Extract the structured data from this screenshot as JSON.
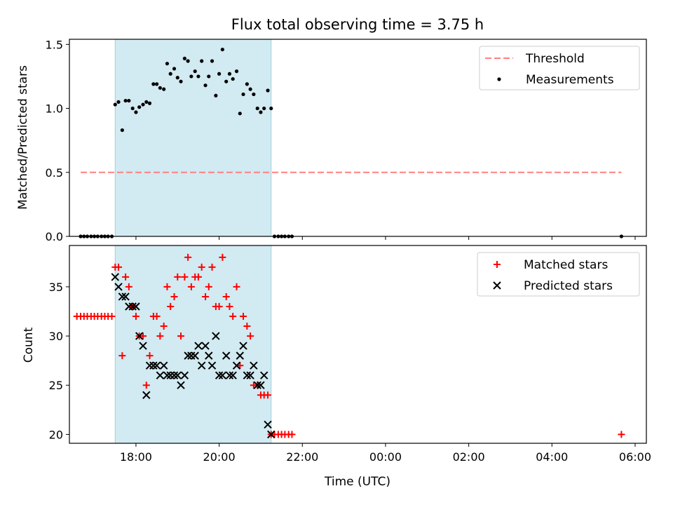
{
  "chart_data": [
    {
      "type": "scatter",
      "title": "Flux total observing time = 3.75 h",
      "xlabel": "",
      "ylabel": "Matched/Predicted stars",
      "xlim": [
        16.4,
        30.27
      ],
      "ylim": [
        0,
        1.54
      ],
      "yticks": [
        0.0,
        0.5,
        1.0,
        1.5
      ],
      "ytick_labels": [
        "0.0",
        "0.5",
        "1.0",
        "1.5"
      ],
      "xticks": [
        18,
        20,
        22,
        24,
        26,
        28,
        30
      ],
      "shaded_interval": [
        17.5,
        21.25
      ],
      "shaded_color": "#add8e6",
      "legend_position": "upper right",
      "series": [
        {
          "name": "Threshold",
          "kind": "line",
          "style": "dashed",
          "color": "#ff8080",
          "x": [
            16.67,
            29.67
          ],
          "y": [
            0.5,
            0.5
          ]
        },
        {
          "name": "Measurements",
          "kind": "scatter",
          "marker": "dot",
          "color": "#000000",
          "x": [
            16.67,
            16.75,
            16.83,
            16.92,
            17.0,
            17.08,
            17.17,
            17.25,
            17.33,
            17.42,
            17.5,
            17.58,
            17.67,
            17.75,
            17.83,
            17.92,
            18.0,
            18.08,
            18.17,
            18.25,
            18.33,
            18.42,
            18.5,
            18.58,
            18.67,
            18.75,
            18.83,
            18.92,
            19.0,
            19.08,
            19.17,
            19.25,
            19.33,
            19.42,
            19.5,
            19.58,
            19.67,
            19.75,
            19.83,
            19.92,
            20.0,
            20.08,
            20.17,
            20.25,
            20.33,
            20.42,
            20.5,
            20.58,
            20.67,
            20.75,
            20.83,
            20.92,
            21.0,
            21.08,
            21.17,
            21.25,
            21.33,
            21.42,
            21.5,
            21.58,
            21.67,
            21.75,
            29.67
          ],
          "y": [
            0,
            0,
            0,
            0,
            0,
            0,
            0,
            0,
            0,
            0,
            1.03,
            1.05,
            0.83,
            1.06,
            1.06,
            1.0,
            0.97,
            1.01,
            1.03,
            1.05,
            1.04,
            1.19,
            1.19,
            1.16,
            1.15,
            1.35,
            1.27,
            1.31,
            1.24,
            1.21,
            1.39,
            1.37,
            1.25,
            1.29,
            1.25,
            1.37,
            1.18,
            1.25,
            1.37,
            1.1,
            1.27,
            1.46,
            1.21,
            1.27,
            1.23,
            1.29,
            0.96,
            1.11,
            1.19,
            1.15,
            1.11,
            1.0,
            0.97,
            1.0,
            1.14,
            1.0,
            0,
            0,
            0,
            0,
            0,
            0,
            0
          ]
        }
      ]
    },
    {
      "type": "scatter",
      "title": "",
      "xlabel": "Time (UTC)",
      "ylabel": "Count",
      "xlim": [
        16.4,
        30.27
      ],
      "ylim": [
        19.1,
        39.2
      ],
      "yticks": [
        20,
        25,
        30,
        35
      ],
      "ytick_labels": [
        "20",
        "25",
        "30",
        "35"
      ],
      "xticks": [
        18,
        20,
        22,
        24,
        26,
        28,
        30
      ],
      "xtick_labels": [
        "18:00",
        "20:00",
        "22:00",
        "00:00",
        "02:00",
        "04:00",
        "06:00"
      ],
      "shaded_interval": [
        17.5,
        21.25
      ],
      "shaded_color": "#add8e6",
      "legend_position": "upper right",
      "series": [
        {
          "name": "Matched stars",
          "kind": "scatter",
          "marker": "plus",
          "color": "#ff0000",
          "x": [
            16.58,
            16.67,
            16.75,
            16.83,
            16.92,
            17.0,
            17.08,
            17.17,
            17.25,
            17.33,
            17.42,
            17.5,
            17.58,
            17.67,
            17.75,
            17.83,
            17.92,
            18.0,
            18.08,
            18.17,
            18.25,
            18.33,
            18.42,
            18.5,
            18.58,
            18.67,
            18.75,
            18.83,
            18.92,
            19.0,
            19.08,
            19.17,
            19.25,
            19.33,
            19.42,
            19.5,
            19.58,
            19.67,
            19.75,
            19.83,
            19.92,
            20.0,
            20.08,
            20.17,
            20.25,
            20.33,
            20.42,
            20.5,
            20.58,
            20.67,
            20.75,
            20.83,
            20.92,
            21.0,
            21.08,
            21.17,
            21.25,
            21.33,
            21.42,
            21.5,
            21.58,
            21.67,
            21.75,
            29.67
          ],
          "y": [
            32,
            32,
            32,
            32,
            32,
            32,
            32,
            32,
            32,
            32,
            32,
            37,
            37,
            28,
            36,
            35,
            33,
            32,
            30,
            30,
            25,
            28,
            32,
            32,
            30,
            31,
            35,
            33,
            34,
            36,
            30,
            36,
            38,
            35,
            36,
            36,
            37,
            34,
            35,
            37,
            33,
            33,
            38,
            34,
            33,
            32,
            35,
            27,
            32,
            31,
            30,
            25,
            25,
            24,
            24,
            24,
            20,
            20,
            20,
            20,
            20,
            20,
            20,
            20
          ]
        },
        {
          "name": "Predicted stars",
          "kind": "scatter",
          "marker": "x",
          "color": "#000000",
          "x": [
            17.5,
            17.58,
            17.67,
            17.75,
            17.83,
            17.92,
            18.0,
            18.08,
            18.17,
            18.25,
            18.33,
            18.42,
            18.5,
            18.58,
            18.67,
            18.75,
            18.83,
            18.92,
            19.0,
            19.08,
            19.17,
            19.25,
            19.33,
            19.42,
            19.5,
            19.58,
            19.67,
            19.75,
            19.83,
            19.92,
            20.0,
            20.08,
            20.17,
            20.25,
            20.33,
            20.42,
            20.5,
            20.58,
            20.67,
            20.75,
            20.83,
            20.92,
            21.0,
            21.08,
            21.17,
            21.25
          ],
          "y": [
            36,
            35,
            34,
            34,
            33,
            33,
            33,
            30,
            29,
            24,
            27,
            27,
            27,
            26,
            27,
            26,
            26,
            26,
            26,
            25,
            26,
            28,
            28,
            28,
            29,
            27,
            29,
            28,
            27,
            30,
            26,
            26,
            28,
            26,
            26,
            27,
            28,
            29,
            26,
            26,
            27,
            25,
            25,
            26,
            21,
            20
          ]
        }
      ]
    }
  ]
}
